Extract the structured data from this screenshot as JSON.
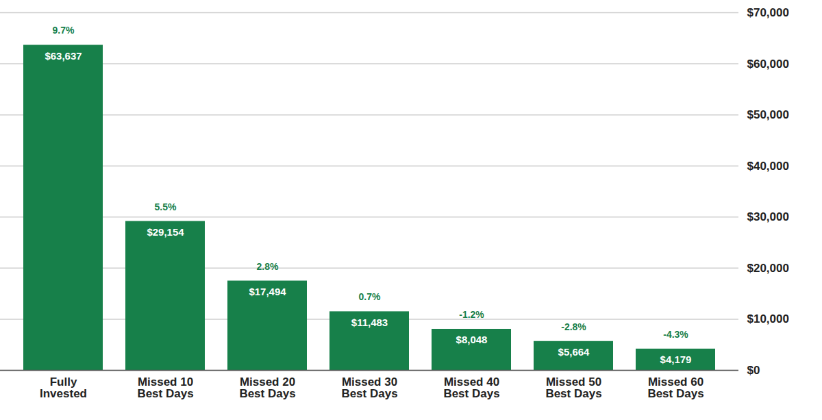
{
  "chart_data": {
    "type": "bar",
    "categories": [
      "Fully\nInvested",
      "Missed 10\nBest Days",
      "Missed 20\nBest Days",
      "Missed 30\nBest Days",
      "Missed 40\nBest Days",
      "Missed 50\nBest Days",
      "Missed 60\nBest Days"
    ],
    "values": [
      63637,
      29154,
      17494,
      11483,
      8048,
      5664,
      4179
    ],
    "value_labels": [
      "$63,637",
      "$29,154",
      "$17,494",
      "$11,483",
      "$8,048",
      "$5,664",
      "$4,179"
    ],
    "return_values": [
      9.7,
      5.5,
      2.8,
      0.7,
      -1.2,
      -2.8,
      -4.3
    ],
    "return_labels": [
      "9.7%",
      "5.5%",
      "2.8%",
      "0.7%",
      "-1.2%",
      "-2.8%",
      "-4.3%"
    ],
    "color": "#17804a",
    "ylim": [
      0,
      70000
    ],
    "yticks": [
      {
        "value": 0,
        "label": "$0"
      },
      {
        "value": 10000,
        "label": "$10,000"
      },
      {
        "value": 20000,
        "label": "$20,000"
      },
      {
        "value": 30000,
        "label": "$30,000"
      },
      {
        "value": 40000,
        "label": "$40,000"
      },
      {
        "value": 50000,
        "label": "$50,000"
      },
      {
        "value": 60000,
        "label": "$60,000"
      },
      {
        "value": 70000,
        "label": "$70,000"
      }
    ],
    "grid": true,
    "data_labels": true
  }
}
